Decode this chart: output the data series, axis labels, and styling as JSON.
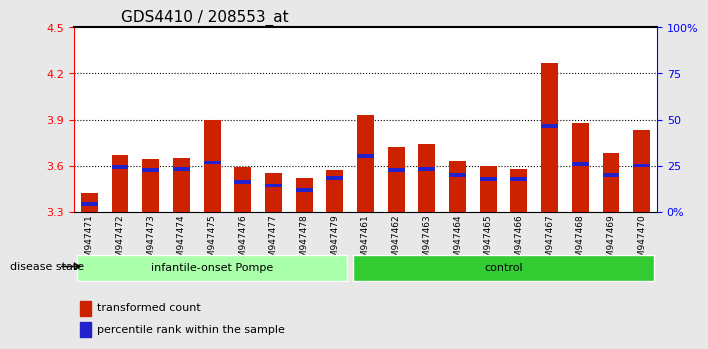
{
  "title": "GDS4410 / 208553_at",
  "samples": [
    "GSM947471",
    "GSM947472",
    "GSM947473",
    "GSM947474",
    "GSM947475",
    "GSM947476",
    "GSM947477",
    "GSM947478",
    "GSM947479",
    "GSM947461",
    "GSM947462",
    "GSM947463",
    "GSM947464",
    "GSM947465",
    "GSM947466",
    "GSM947467",
    "GSM947468",
    "GSM947469",
    "GSM947470"
  ],
  "red_values": [
    3.42,
    3.67,
    3.64,
    3.65,
    3.9,
    3.59,
    3.55,
    3.52,
    3.57,
    3.93,
    3.72,
    3.74,
    3.63,
    3.6,
    3.58,
    4.27,
    3.88,
    3.68,
    3.83
  ],
  "blue_values": [
    3.35,
    3.59,
    3.57,
    3.58,
    3.62,
    3.49,
    3.47,
    3.44,
    3.52,
    3.66,
    3.57,
    3.58,
    3.54,
    3.51,
    3.51,
    3.86,
    3.61,
    3.54,
    3.6
  ],
  "ylim": [
    3.3,
    4.5
  ],
  "yticks_left": [
    3.3,
    3.6,
    3.9,
    4.2,
    4.5
  ],
  "yticks_right": [
    0,
    25,
    50,
    75,
    100
  ],
  "yticklabels_right": [
    "0%",
    "25",
    "50",
    "75",
    "100%"
  ],
  "groups": [
    {
      "label": "infantile-onset Pompe",
      "start": 0,
      "end": 9,
      "color": "#aaffaa"
    },
    {
      "label": "control",
      "start": 9,
      "end": 19,
      "color": "#33cc33"
    }
  ],
  "disease_state_label": "disease state",
  "bar_color": "#cc2200",
  "blue_color": "#2222cc",
  "background_color": "#e8e8e8",
  "plot_bg": "#ffffff",
  "legend_red_label": "transformed count",
  "legend_blue_label": "percentile rank within the sample",
  "base": 3.3
}
